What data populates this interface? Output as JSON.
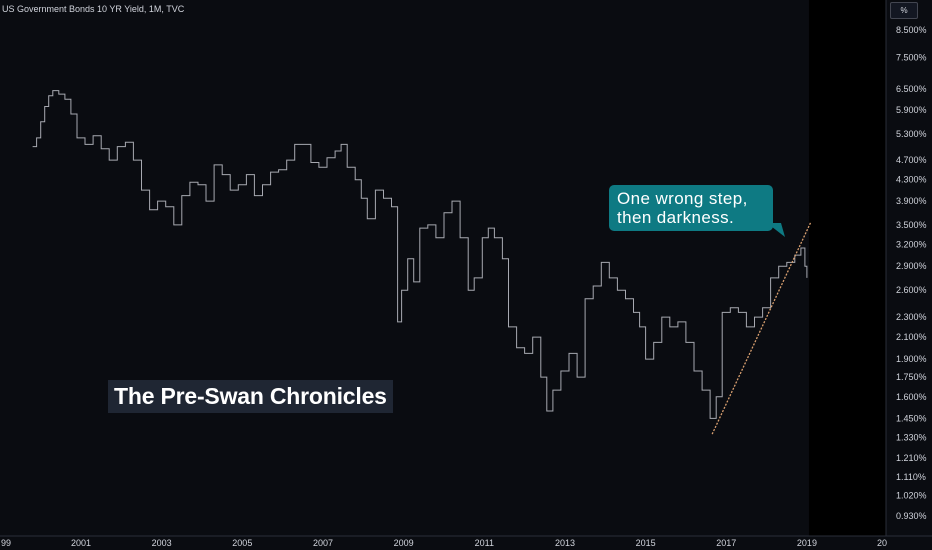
{
  "chart_data": {
    "type": "line",
    "title": "US Government Bonds 10 YR Yield, 1M, TVC",
    "unit_label": "%",
    "y_scale": "log",
    "ylim": [
      0.9,
      10.0
    ],
    "xlim": [
      1999.8,
      2020.0
    ],
    "x_tick_labels": [
      "99",
      "2001",
      "2003",
      "2005",
      "2007",
      "2009",
      "2011",
      "2013",
      "2015",
      "2017",
      "2019",
      "20"
    ],
    "y_tick_labels": [
      "8.500%",
      "7.500%",
      "6.500%",
      "5.900%",
      "5.300%",
      "4.700%",
      "4.300%",
      "3.900%",
      "3.500%",
      "3.200%",
      "2.900%",
      "2.600%",
      "2.300%",
      "2.100%",
      "1.900%",
      "1.750%",
      "1.600%",
      "1.450%",
      "1.330%",
      "1.210%",
      "1.110%",
      "1.020%",
      "0.930%"
    ],
    "series": [
      {
        "color": "#a7a9b1",
        "points": [
          [
            1999.8,
            5.0
          ],
          [
            1999.9,
            5.2
          ],
          [
            2000.0,
            5.6
          ],
          [
            2000.1,
            6.0
          ],
          [
            2000.2,
            6.3
          ],
          [
            2000.3,
            6.45
          ],
          [
            2000.45,
            6.35
          ],
          [
            2000.6,
            6.2
          ],
          [
            2000.75,
            5.8
          ],
          [
            2000.9,
            5.2
          ],
          [
            2001.1,
            5.05
          ],
          [
            2001.3,
            5.25
          ],
          [
            2001.5,
            4.95
          ],
          [
            2001.7,
            4.7
          ],
          [
            2001.9,
            5.0
          ],
          [
            2002.1,
            5.1
          ],
          [
            2002.3,
            4.7
          ],
          [
            2002.5,
            4.1
          ],
          [
            2002.7,
            3.75
          ],
          [
            2002.9,
            3.9
          ],
          [
            2003.1,
            3.8
          ],
          [
            2003.3,
            3.5
          ],
          [
            2003.5,
            4.0
          ],
          [
            2003.7,
            4.25
          ],
          [
            2003.9,
            4.2
          ],
          [
            2004.1,
            3.9
          ],
          [
            2004.3,
            4.6
          ],
          [
            2004.5,
            4.4
          ],
          [
            2004.7,
            4.1
          ],
          [
            2004.9,
            4.2
          ],
          [
            2005.1,
            4.4
          ],
          [
            2005.3,
            4.0
          ],
          [
            2005.5,
            4.2
          ],
          [
            2005.7,
            4.45
          ],
          [
            2005.9,
            4.5
          ],
          [
            2006.1,
            4.7
          ],
          [
            2006.3,
            5.05
          ],
          [
            2006.5,
            5.05
          ],
          [
            2006.7,
            4.65
          ],
          [
            2006.9,
            4.55
          ],
          [
            2007.1,
            4.75
          ],
          [
            2007.3,
            4.9
          ],
          [
            2007.45,
            5.05
          ],
          [
            2007.6,
            4.55
          ],
          [
            2007.8,
            4.3
          ],
          [
            2007.95,
            3.95
          ],
          [
            2008.1,
            3.6
          ],
          [
            2008.3,
            4.1
          ],
          [
            2008.5,
            3.95
          ],
          [
            2008.7,
            3.8
          ],
          [
            2008.85,
            2.25
          ],
          [
            2008.95,
            2.6
          ],
          [
            2009.1,
            3.0
          ],
          [
            2009.25,
            2.7
          ],
          [
            2009.4,
            3.45
          ],
          [
            2009.6,
            3.5
          ],
          [
            2009.8,
            3.3
          ],
          [
            2010.0,
            3.7
          ],
          [
            2010.2,
            3.9
          ],
          [
            2010.4,
            3.3
          ],
          [
            2010.6,
            2.6
          ],
          [
            2010.75,
            2.75
          ],
          [
            2010.95,
            3.3
          ],
          [
            2011.1,
            3.45
          ],
          [
            2011.25,
            3.3
          ],
          [
            2011.45,
            3.0
          ],
          [
            2011.6,
            2.2
          ],
          [
            2011.8,
            2.0
          ],
          [
            2012.0,
            1.95
          ],
          [
            2012.2,
            2.1
          ],
          [
            2012.4,
            1.75
          ],
          [
            2012.55,
            1.5
          ],
          [
            2012.7,
            1.65
          ],
          [
            2012.9,
            1.8
          ],
          [
            2013.1,
            1.95
          ],
          [
            2013.3,
            1.75
          ],
          [
            2013.5,
            2.5
          ],
          [
            2013.7,
            2.65
          ],
          [
            2013.9,
            2.95
          ],
          [
            2014.1,
            2.75
          ],
          [
            2014.3,
            2.6
          ],
          [
            2014.5,
            2.5
          ],
          [
            2014.7,
            2.35
          ],
          [
            2014.85,
            2.2
          ],
          [
            2015.0,
            1.9
          ],
          [
            2015.2,
            2.05
          ],
          [
            2015.4,
            2.3
          ],
          [
            2015.6,
            2.2
          ],
          [
            2015.8,
            2.25
          ],
          [
            2016.0,
            2.05
          ],
          [
            2016.2,
            1.8
          ],
          [
            2016.4,
            1.65
          ],
          [
            2016.6,
            1.45
          ],
          [
            2016.75,
            1.6
          ],
          [
            2016.9,
            2.35
          ],
          [
            2017.1,
            2.4
          ],
          [
            2017.3,
            2.35
          ],
          [
            2017.5,
            2.2
          ],
          [
            2017.7,
            2.3
          ],
          [
            2017.9,
            2.4
          ],
          [
            2018.1,
            2.75
          ],
          [
            2018.3,
            2.9
          ],
          [
            2018.5,
            2.95
          ],
          [
            2018.7,
            3.05
          ],
          [
            2018.85,
            3.15
          ],
          [
            2018.95,
            2.9
          ],
          [
            2019.0,
            2.75
          ]
        ]
      }
    ],
    "trendline": {
      "color": "#d9a070",
      "dashed": true,
      "points": [
        [
          2016.65,
          1.35
        ],
        [
          2019.1,
          3.55
        ]
      ]
    },
    "shaded_region_from_x": 2019.05,
    "annotations": [
      {
        "text": "One wrong step,\nthen darkness.",
        "background": "#0e7a83"
      },
      {
        "text": "The Pre-Swan Chronicles",
        "background": "#1f2633"
      }
    ],
    "grid": false,
    "legend": "none"
  }
}
